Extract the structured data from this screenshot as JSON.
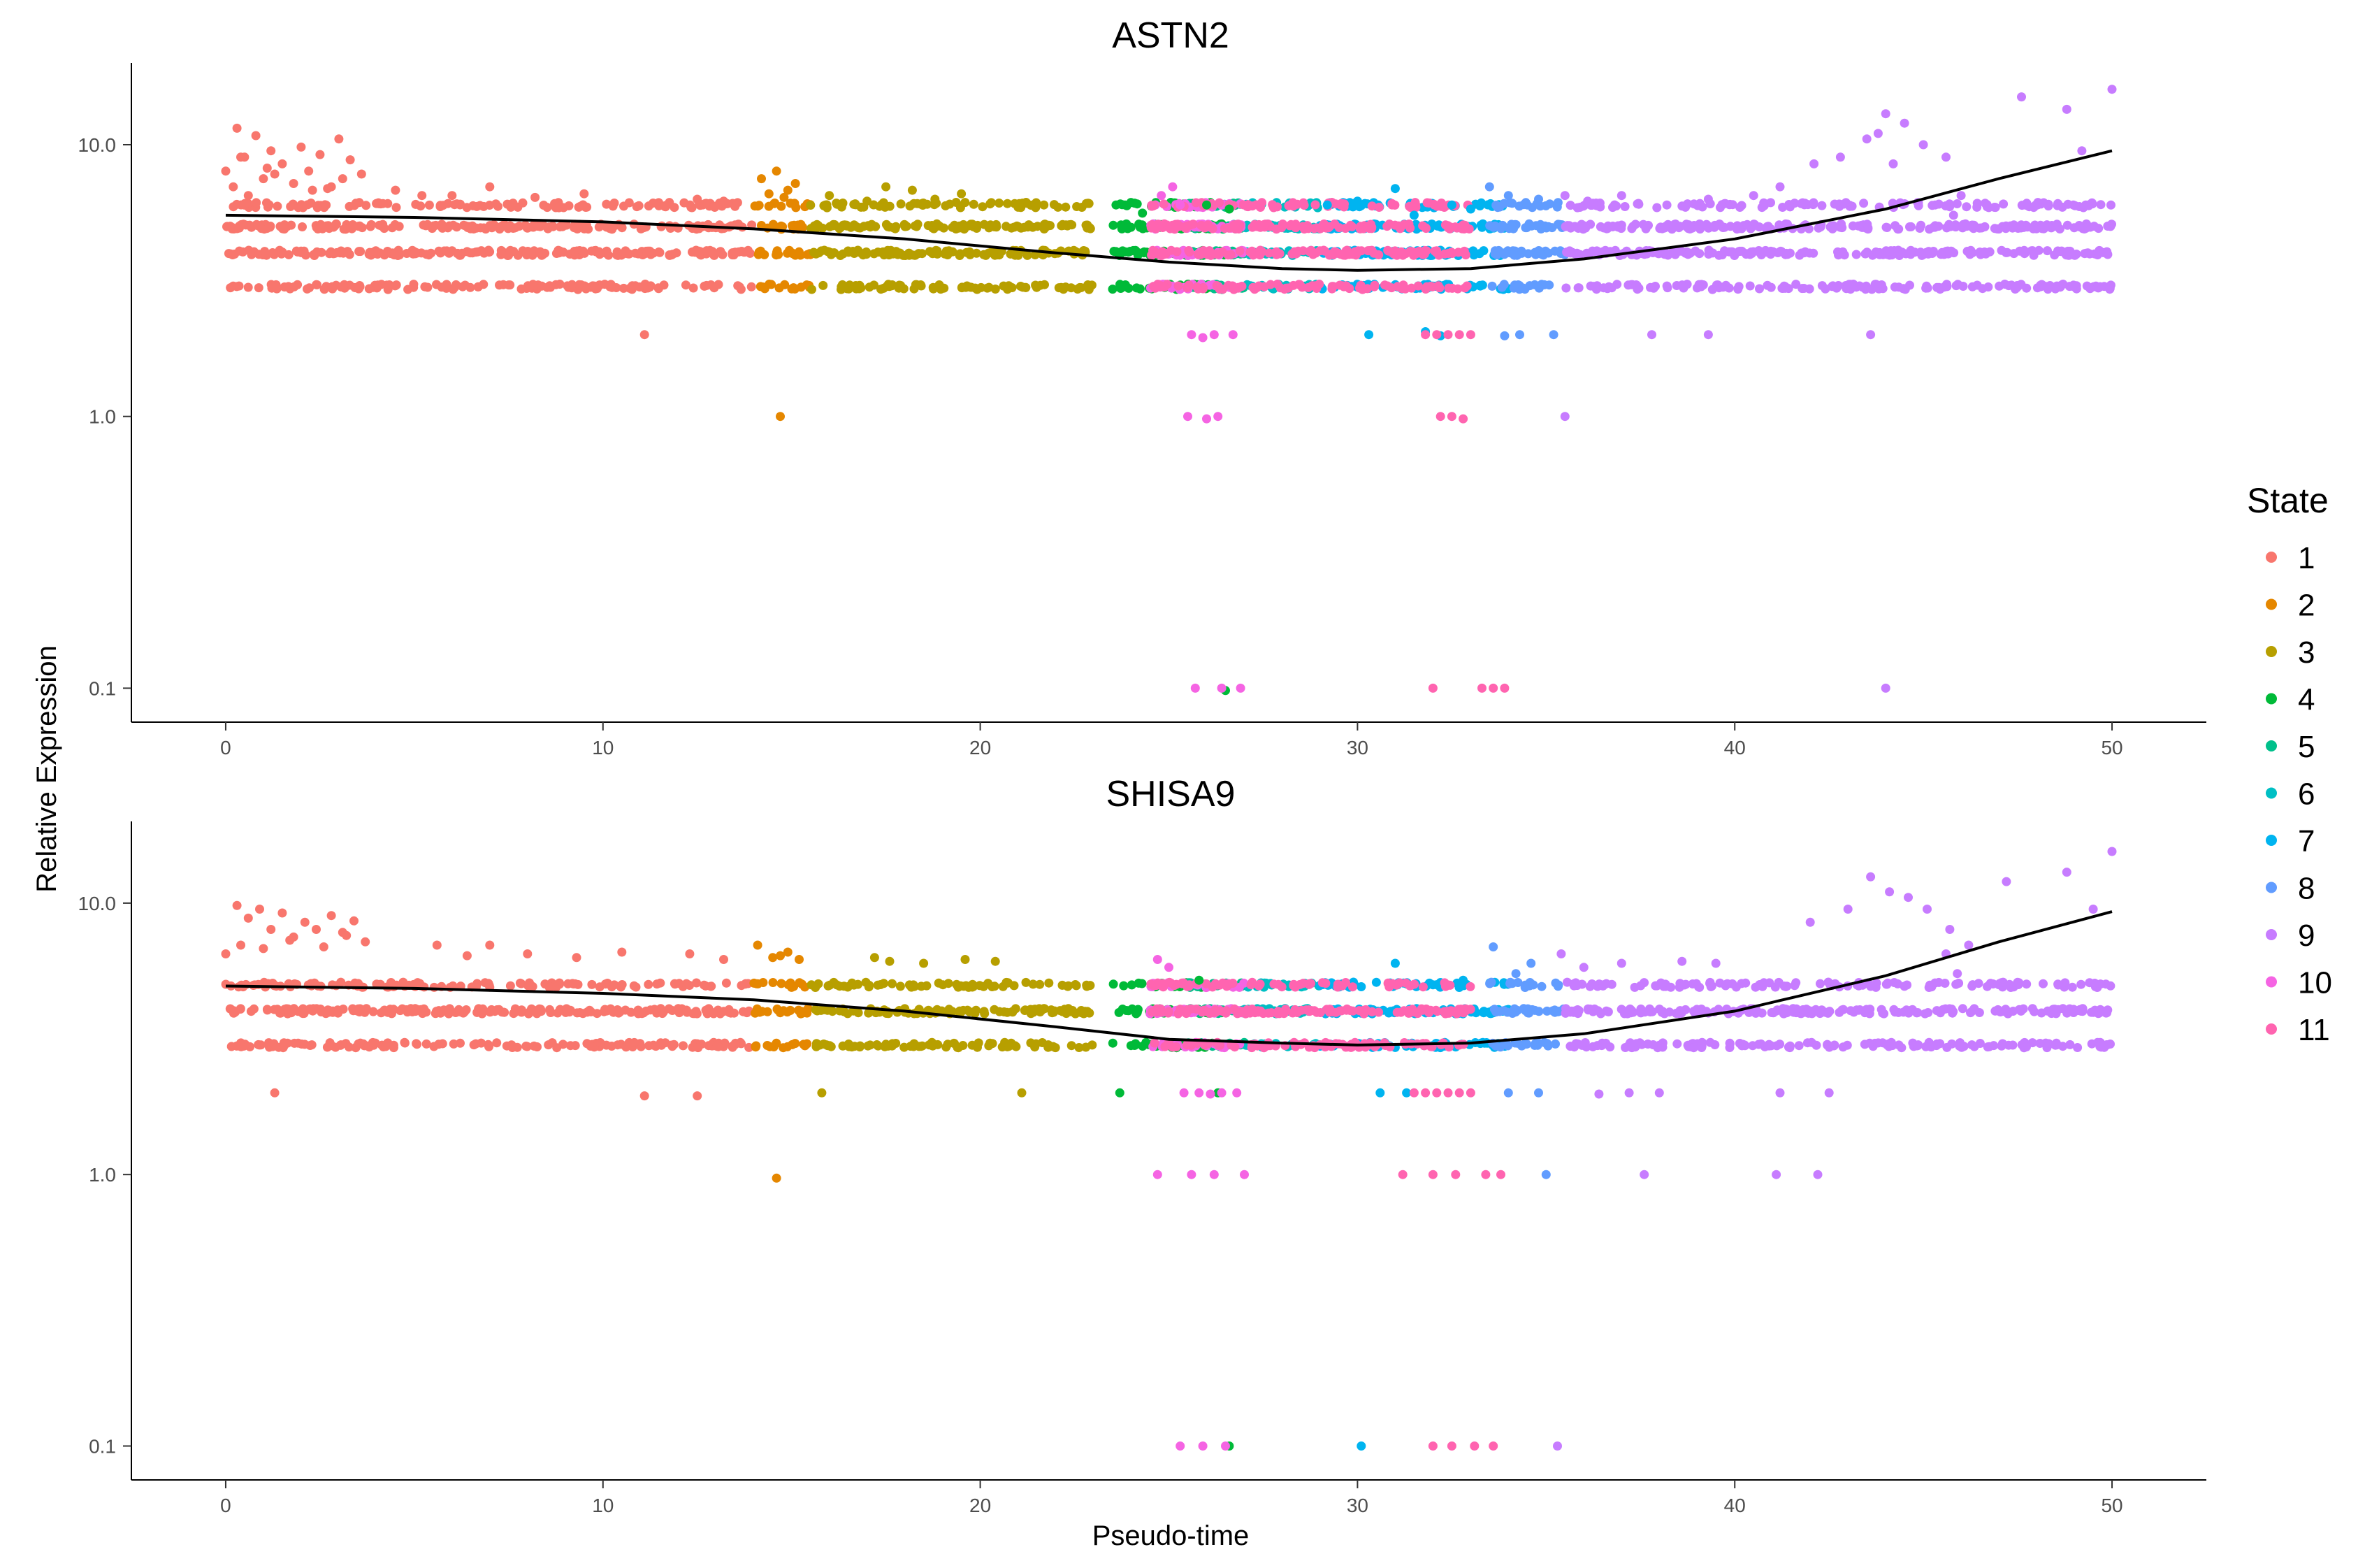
{
  "chart_data": {
    "type": "scatter",
    "xlabel": "Pseudo-time",
    "ylabel": "Relative Expression",
    "xlim": [
      -2.5,
      52.5
    ],
    "yscale": "log10",
    "ylim": [
      0.075,
      20
    ],
    "x_ticks": [
      0,
      10,
      20,
      30,
      40,
      50
    ],
    "x_tick_labels": [
      "0",
      "10",
      "20",
      "30",
      "40",
      "50"
    ],
    "y_ticks": [
      0.1,
      1.0,
      10.0
    ],
    "y_tick_labels": [
      "0.1",
      "1.0",
      "10.0"
    ],
    "legend": {
      "title": "State",
      "position": "right",
      "entries": [
        {
          "label": "1",
          "color": "#F8766D"
        },
        {
          "label": "2",
          "color": "#E58700"
        },
        {
          "label": "3",
          "color": "#B79F00"
        },
        {
          "label": "4",
          "color": "#00BA38"
        },
        {
          "label": "5",
          "color": "#00C08B"
        },
        {
          "label": "6",
          "color": "#00BFC4"
        },
        {
          "label": "7",
          "color": "#00B4F0"
        },
        {
          "label": "8",
          "color": "#619CFF"
        },
        {
          "label": "9",
          "color": "#C77CFF"
        },
        {
          "label": "10",
          "color": "#F564E3"
        },
        {
          "label": "11",
          "color": "#FF64B0"
        }
      ]
    },
    "state_ranges": [
      {
        "state": "1",
        "x": [
          0,
          14
        ],
        "levels_alt": [
          1,
          2
        ]
      },
      {
        "state": "2",
        "x": [
          14,
          15.5
        ],
        "levels_alt": [
          1,
          2
        ]
      },
      {
        "state": "3",
        "x": [
          15.5,
          23
        ],
        "levels_alt": [
          1,
          2
        ]
      },
      {
        "state": "4",
        "x": [
          23.5,
          26.5
        ],
        "levels_alt": [
          1,
          2
        ]
      },
      {
        "state": "5",
        "x": [
          25.5,
          27
        ],
        "levels_alt": [
          1
        ]
      },
      {
        "state": "6",
        "x": [
          27,
          29
        ],
        "levels_alt": [
          1
        ]
      },
      {
        "state": "7",
        "x": [
          29,
          34
        ],
        "levels_alt": [
          1,
          2
        ]
      },
      {
        "state": "8",
        "x": [
          33.5,
          35.5
        ],
        "levels_alt": [
          1,
          2
        ]
      },
      {
        "state": "9",
        "x": [
          35.5,
          50
        ],
        "levels_alt": [
          1,
          2
        ]
      },
      {
        "state": "10",
        "x": [
          24.5,
          27
        ],
        "levels_alt": [
          2
        ]
      },
      {
        "state": "11",
        "x": [
          24.5,
          33
        ],
        "levels_alt": [
          1
        ]
      }
    ],
    "panels": [
      {
        "title": "ASTN2",
        "trend": {
          "x": [
            0,
            5,
            10,
            14,
            18,
            22,
            25,
            28,
            30,
            33,
            36,
            40,
            44,
            47,
            50
          ],
          "y": [
            5.5,
            5.4,
            5.2,
            4.9,
            4.5,
            4.0,
            3.7,
            3.5,
            3.45,
            3.5,
            3.8,
            4.5,
            5.8,
            7.5,
            9.5
          ]
        },
        "points": [
          {
            "state": "1",
            "x": [
              0.0,
              0.3,
              0.5,
              0.8,
              1.0,
              1.2,
              1.5,
              1.8,
              2.0,
              2.2,
              2.5,
              2.8,
              3.0,
              3.3,
              3.6,
              0.2,
              0.6,
              1.3,
              2.3,
              3.1,
              0.4,
              1.1,
              2.7
            ],
            "y": [
              8.0,
              11.5,
              9.0,
              10.8,
              7.5,
              9.5,
              8.5,
              7.2,
              9.8,
              8.0,
              9.2,
              7.0,
              10.5,
              8.8,
              7.8,
              7.0,
              6.5,
              7.8,
              6.8,
              7.5,
              9.0,
              8.2,
              6.9
            ]
          },
          {
            "state": "1",
            "x": [
              4.5,
              6.0,
              7.0,
              8.2,
              9.5,
              11.1,
              12.5,
              13.2,
              5.2,
              10.3
            ],
            "y": [
              6.8,
              6.5,
              7.0,
              6.4,
              6.6,
              2.0,
              6.3,
              6.2,
              6.5,
              6.1
            ]
          },
          {
            "state": "2",
            "x": [
              14.2,
              14.6,
              14.9,
              15.1,
              14.4,
              14.8,
              14.7
            ],
            "y": [
              7.5,
              8.0,
              6.8,
              7.2,
              6.6,
              6.4,
              1.0
            ]
          },
          {
            "state": "3",
            "x": [
              16.0,
              17.5,
              18.8,
              19.5,
              20.5,
              17.0,
              18.2
            ],
            "y": [
              6.5,
              7.0,
              6.3,
              6.6,
              6.1,
              6.2,
              6.8
            ]
          },
          {
            "state": "4",
            "x": [
              23.6,
              24.3,
              26.0,
              26.6,
              26.5
            ],
            "y": [
              6.0,
              5.6,
              6.0,
              5.8,
              0.098
            ]
          },
          {
            "state": "10",
            "x": [
              24.8,
              25.1,
              25.3,
              25.6,
              25.9,
              26.2,
              26.7,
              25.5,
              26.0,
              26.3,
              25.7,
              26.4,
              26.9
            ],
            "y": [
              6.5,
              7.0,
              6.0,
              2.0,
              1.95,
              2.0,
              2.0,
              1.0,
              0.98,
              1.0,
              0.1,
              0.1,
              0.1
            ]
          },
          {
            "state": "7",
            "x": [
              29.2,
              30.0,
              31.0,
              31.5,
              32.5,
              33.0,
              30.3,
              31.8,
              32.2
            ],
            "y": [
              6.0,
              6.2,
              6.9,
              5.5,
              6.0,
              5.8,
              2.0,
              2.05,
              1.98
            ]
          },
          {
            "state": "11",
            "x": [
              31.8,
              32.1,
              32.4,
              32.7,
              33.0,
              32.2,
              32.5,
              32.8,
              33.3,
              33.6,
              33.9,
              32.0
            ],
            "y": [
              2.0,
              2.0,
              2.0,
              2.0,
              2.0,
              1.0,
              1.0,
              0.98,
              0.1,
              0.1,
              0.1,
              0.1
            ]
          },
          {
            "state": "8",
            "x": [
              33.5,
              34.0,
              34.5,
              34.3,
              33.9,
              34.8,
              35.2
            ],
            "y": [
              7.0,
              6.5,
              6.0,
              2.0,
              1.98,
              6.3,
              2.0
            ]
          },
          {
            "state": "9",
            "x": [
              35.5,
              36.1,
              37.0,
              38.2,
              39.3,
              40.5,
              41.2,
              42.1,
              42.8,
              43.5,
              44.0,
              44.5,
              45.0,
              45.6,
              46.0,
              46.3,
              47.6,
              48.8,
              49.2,
              50.0,
              43.8,
              44.2,
              45.8,
              35.5,
              44.0,
              37.8,
              39.3,
              43.6
            ],
            "y": [
              6.5,
              6.2,
              6.5,
              6.0,
              6.3,
              6.5,
              7.0,
              8.5,
              9.0,
              10.5,
              13.0,
              12.0,
              10.0,
              9.0,
              6.5,
              3.0,
              15.0,
              13.5,
              9.5,
              16.0,
              11.0,
              8.5,
              5.5,
              1.0,
              0.1,
              2.0,
              2.0,
              2.0
            ]
          }
        ]
      },
      {
        "title": "SHISA9",
        "trend": {
          "x": [
            0,
            5,
            10,
            14,
            18,
            22,
            25,
            28,
            30,
            33,
            36,
            40,
            44,
            47,
            50
          ],
          "y": [
            4.95,
            4.85,
            4.65,
            4.4,
            4.0,
            3.5,
            3.15,
            3.05,
            3.0,
            3.05,
            3.3,
            4.0,
            5.4,
            7.2,
            9.3
          ]
        },
        "points": [
          {
            "state": "1",
            "x": [
              0.0,
              0.3,
              0.6,
              0.9,
              1.2,
              1.5,
              1.8,
              2.1,
              2.4,
              2.8,
              3.1,
              3.4,
              3.7,
              0.4,
              1.0,
              1.7,
              2.6,
              3.2,
              1.3
            ],
            "y": [
              6.5,
              9.8,
              8.8,
              9.5,
              8.0,
              9.2,
              7.5,
              8.5,
              8.0,
              9.0,
              7.8,
              8.6,
              7.2,
              7.0,
              6.8,
              7.3,
              6.9,
              7.6,
              2.0
            ]
          },
          {
            "state": "1",
            "x": [
              5.6,
              7.0,
              8.0,
              9.3,
              10.5,
              11.1,
              12.5,
              13.2,
              6.4,
              12.3
            ],
            "y": [
              7.0,
              7.0,
              6.5,
              6.3,
              6.6,
              1.95,
              1.95,
              6.2,
              6.4,
              6.5
            ]
          },
          {
            "state": "2",
            "x": [
              14.1,
              14.5,
              14.9,
              15.2,
              14.7,
              14.6
            ],
            "y": [
              7.0,
              6.3,
              6.6,
              6.2,
              6.4,
              0.97
            ]
          },
          {
            "state": "3",
            "x": [
              15.8,
              17.6,
              18.5,
              19.6,
              20.4,
              21.1,
              17.2
            ],
            "y": [
              2.0,
              6.1,
              6.0,
              6.2,
              6.1,
              2.0,
              6.3
            ]
          },
          {
            "state": "4",
            "x": [
              23.7,
              25.8,
              26.3,
              26.6
            ],
            "y": [
              2.0,
              5.2,
              2.0,
              0.1
            ]
          },
          {
            "state": "10",
            "x": [
              24.7,
              25.0,
              25.4,
              25.8,
              26.1,
              26.4,
              26.8,
              24.7,
              25.6,
              26.2,
              27.0,
              25.3,
              25.9,
              26.5
            ],
            "y": [
              6.2,
              5.8,
              2.0,
              2.0,
              1.98,
              2.0,
              2.0,
              1.0,
              1.0,
              1.0,
              1.0,
              0.1,
              0.1,
              0.1
            ]
          },
          {
            "state": "7",
            "x": [
              30.1,
              31.0,
              32.0,
              32.8,
              30.6,
              31.3
            ],
            "y": [
              0.1,
              6.0,
              5.0,
              5.2,
              2.0,
              2.0
            ]
          },
          {
            "state": "11",
            "x": [
              31.5,
              31.8,
              32.1,
              32.4,
              32.7,
              33.0,
              31.2,
              32.0,
              32.6,
              33.4,
              33.8,
              32.0,
              32.5,
              33.1,
              33.6
            ],
            "y": [
              2.0,
              2.0,
              2.0,
              2.0,
              2.0,
              2.0,
              1.0,
              1.0,
              1.0,
              1.0,
              1.0,
              0.1,
              0.1,
              0.1,
              0.1
            ]
          },
          {
            "state": "8",
            "x": [
              33.6,
              34.2,
              34.8,
              35.0,
              34.0,
              34.6
            ],
            "y": [
              6.9,
              5.5,
              2.0,
              1.0,
              2.0,
              6.0
            ]
          },
          {
            "state": "9",
            "x": [
              35.4,
              36.0,
              37.0,
              37.6,
              38.6,
              39.5,
              41.1,
              42.2,
              42.0,
              43.0,
              43.6,
              44.1,
              44.6,
              45.1,
              45.7,
              46.2,
              47.2,
              48.8,
              49.5,
              50.0,
              45.6,
              45.9,
              35.3,
              36.4,
              37.2,
              38.0,
              41.2,
              42.5
            ],
            "y": [
              6.5,
              5.8,
              6.0,
              1.0,
              6.1,
              6.0,
              1.0,
              1.0,
              8.5,
              9.5,
              12.5,
              11.0,
              10.5,
              9.5,
              8.0,
              7.0,
              12.0,
              13.0,
              9.5,
              15.5,
              6.5,
              5.5,
              0.1,
              1.98,
              2.0,
              2.0,
              2.0,
              2.0
            ]
          }
        ]
      }
    ]
  }
}
